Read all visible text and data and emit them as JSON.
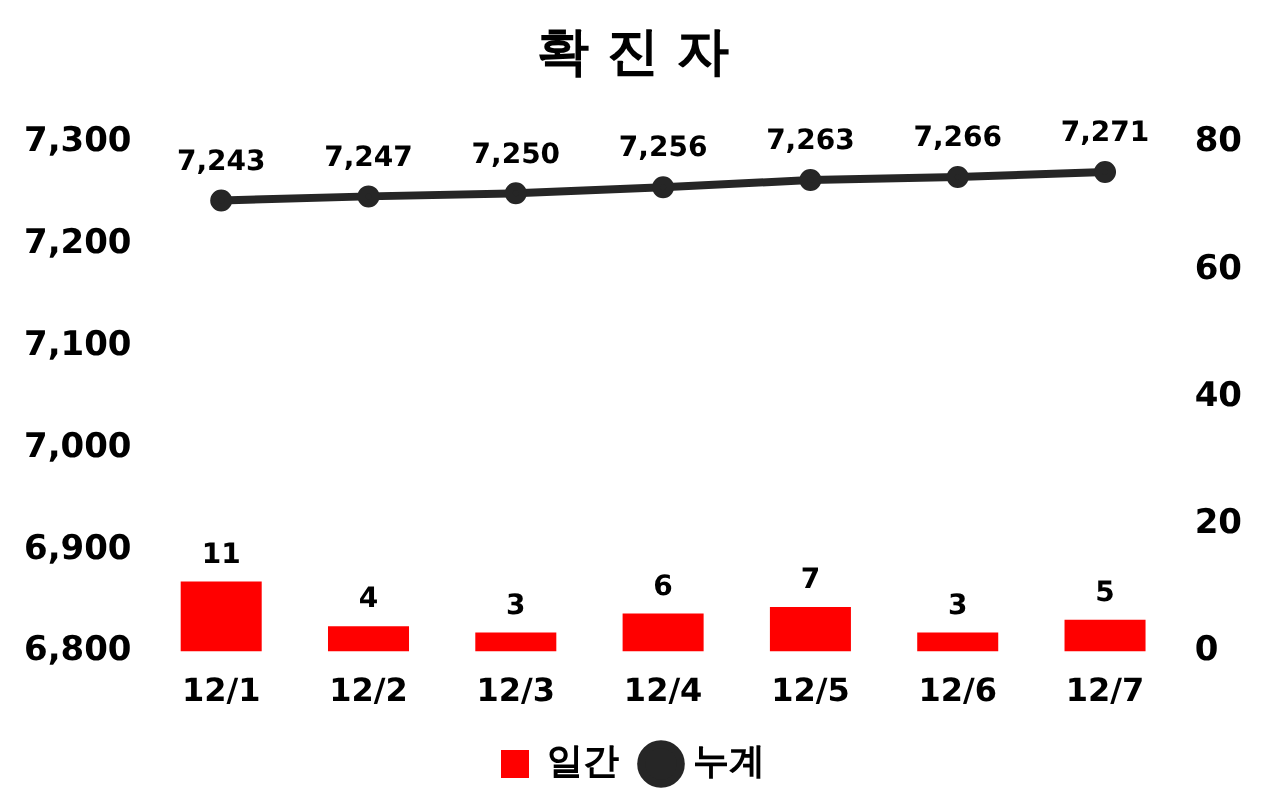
{
  "chart_data": {
    "type": "bar",
    "title": "확 진 자",
    "categories": [
      "12/1",
      "12/2",
      "12/3",
      "12/4",
      "12/5",
      "12/6",
      "12/7"
    ],
    "series": [
      {
        "name": "일간",
        "axis": "y2",
        "color": "#ff0000",
        "values": [
          11,
          4,
          3,
          6,
          7,
          3,
          5
        ],
        "value_labels": [
          "11",
          "4",
          "3",
          "6",
          "7",
          "3",
          "5"
        ]
      },
      {
        "name": "누계",
        "type": "line",
        "axis": "y",
        "color": "#262626",
        "values": [
          7243,
          7247,
          7250,
          7256,
          7263,
          7266,
          7271
        ],
        "value_labels": [
          "7,243",
          "7,247",
          "7,250",
          "7,256",
          "7,263",
          "7,266",
          "7,271"
        ]
      }
    ],
    "ylim": [
      6800,
      7300
    ],
    "yticks": [
      {
        "value": 6800,
        "label": "6,800"
      },
      {
        "value": 6900,
        "label": "6,900"
      },
      {
        "value": 7000,
        "label": "7,000"
      },
      {
        "value": 7100,
        "label": "7,100"
      },
      {
        "value": 7200,
        "label": "7,200"
      },
      {
        "value": 7300,
        "label": "7,300"
      }
    ],
    "y2lim": [
      0,
      80
    ],
    "y2ticks": [
      0,
      20,
      40,
      60,
      80
    ],
    "legend": "bottom",
    "grid": false,
    "marker": "circle"
  }
}
